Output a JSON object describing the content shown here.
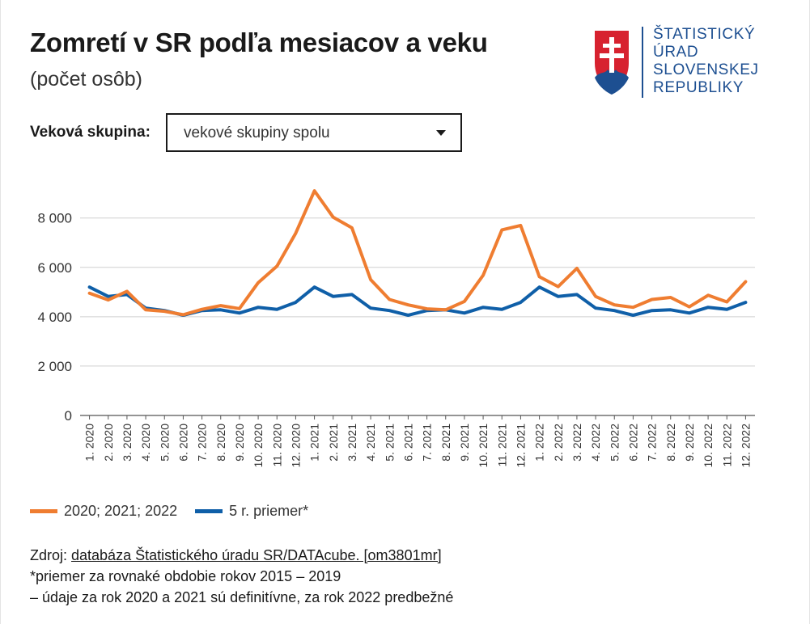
{
  "header": {
    "title": "Zomretí v SR podľa mesiacov a veku",
    "subtitle": "(počet osôb)"
  },
  "logo": {
    "lines": [
      "ŠTATISTICKÝ",
      "ÚRAD",
      "SLOVENSKEJ",
      "REPUBLIKY"
    ],
    "color": "#1d4f91",
    "icon": "slovak-coat-of-arms-icon"
  },
  "filter": {
    "label": "Veková skupina:",
    "selected": "vekové skupiny spolu"
  },
  "chart_data": {
    "type": "line",
    "x": [
      "1. 2020",
      "2. 2020",
      "3. 2020",
      "4. 2020",
      "5. 2020",
      "6. 2020",
      "7. 2020",
      "8. 2020",
      "9. 2020",
      "10. 2020",
      "11. 2020",
      "12. 2020",
      "1. 2021",
      "2. 2021",
      "3. 2021",
      "4. 2021",
      "5. 2021",
      "6. 2021",
      "7. 2021",
      "8. 2021",
      "9. 2021",
      "10. 2021",
      "11. 2021",
      "12. 2021",
      "1. 2022",
      "2. 2022",
      "3. 2022",
      "4. 2022",
      "5. 2022",
      "6. 2022",
      "7. 2022",
      "8. 2022",
      "9. 2022",
      "10. 2022",
      "11. 2022",
      "12. 2022"
    ],
    "series": [
      {
        "name": "2020; 2021; 2022",
        "color": "#ef7d31",
        "values": [
          4950,
          4680,
          5030,
          4280,
          4220,
          4080,
          4300,
          4450,
          4330,
          5380,
          6050,
          7380,
          9100,
          8030,
          7600,
          5500,
          4700,
          4480,
          4320,
          4280,
          4620,
          5680,
          7520,
          7700,
          5620,
          5220,
          5960,
          4820,
          4480,
          4380,
          4700,
          4780,
          4400,
          4870,
          4600,
          5420
        ]
      },
      {
        "name": "5 r. priemer*",
        "color": "#0f5fa8",
        "values": [
          5200,
          4820,
          4900,
          4350,
          4250,
          4060,
          4250,
          4280,
          4150,
          4380,
          4300,
          4580,
          5200,
          4820,
          4900,
          4350,
          4250,
          4060,
          4250,
          4280,
          4150,
          4380,
          4300,
          4580,
          5200,
          4820,
          4900,
          4350,
          4250,
          4060,
          4250,
          4280,
          4150,
          4380,
          4300,
          4580
        ]
      }
    ],
    "yticks": [
      0,
      2000,
      4000,
      6000,
      8000
    ],
    "ytick_labels": [
      "0",
      "2 000",
      "4 000",
      "6 000",
      "8 000"
    ],
    "ylim": [
      0,
      9300
    ],
    "grid": true,
    "legend_position": "bottom-left",
    "title": "",
    "xlabel": "",
    "ylabel": ""
  },
  "notes": {
    "source_prefix": "Zdroj: ",
    "source_link": "databáza Štatistického úradu SR/DATAcube. [om3801mr]",
    "note1": "*priemer za rovnaké obdobie rokov 2015 – 2019",
    "note2": "– údaje za rok 2020 a 2021 sú definitívne, za rok 2022 predbežné"
  }
}
